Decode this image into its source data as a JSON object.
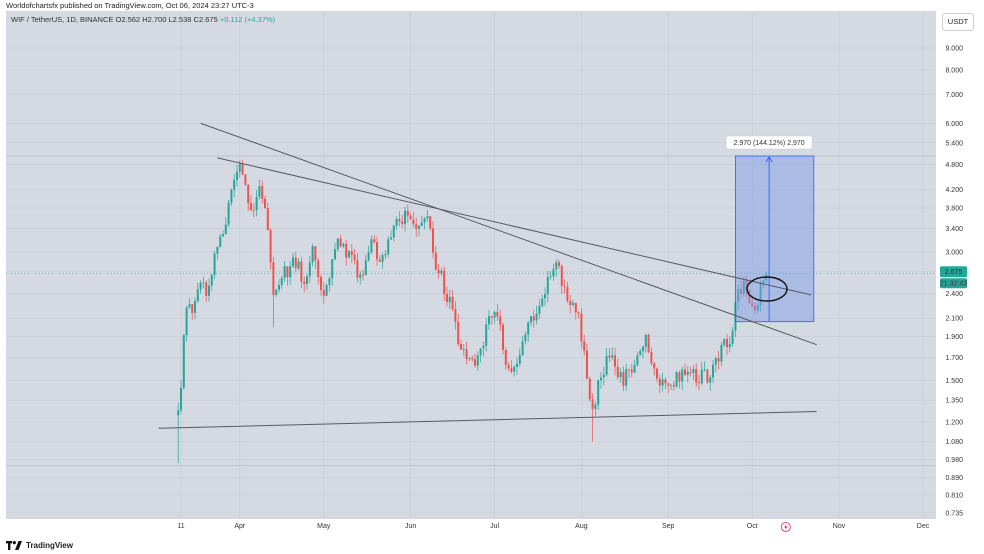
{
  "header": {
    "attribution": "Worldofchartsfx published on TradingView.com, Oct 06, 2024 23:27 UTC-3"
  },
  "symbol": {
    "name": "WIF / TetherUS, 1D, BINANCE",
    "open_label": "O",
    "open": "2.562",
    "high_label": "H",
    "high": "2.700",
    "low_label": "L",
    "low": "2.538",
    "close_label": "C",
    "close": "2.675",
    "change": "+0.112 (+4.37%)"
  },
  "currency_button": "USDT",
  "footer": {
    "brand": "TradingView"
  },
  "colors": {
    "up": "#26a69a",
    "down": "#ef5350",
    "background": "#d5d9e2",
    "trendline": "#555a63",
    "measure_fill": "#7f9fe6",
    "measure_line": "#2962ff",
    "price_badge": "#26a69a"
  },
  "chart_data": {
    "type": "candlestick",
    "scale": "log",
    "price_axis": {
      "ticks": [
        "9.000",
        "8.000",
        "7.000",
        "6.000",
        "5.400",
        "4.800",
        "4.200",
        "3.800",
        "3.400",
        "3.000",
        "2.700",
        "2.400",
        "2.100",
        "1.900",
        "1.700",
        "1.500",
        "1.350",
        "1.200",
        "1.080",
        "0.980",
        "0.890",
        "0.810",
        "0.735"
      ],
      "ylim": [
        0.7,
        10
      ]
    },
    "time_axis": {
      "labels": [
        "11",
        "Apr",
        "May",
        "Jun",
        "Jul",
        "Aug",
        "Sep",
        "Oct",
        "Nov",
        "Dec"
      ],
      "dates": [
        "2024-03-11",
        "2024-04-01",
        "2024-05-01",
        "2024-06-01",
        "2024-07-01",
        "2024-08-01",
        "2024-09-01",
        "2024-10-01",
        "2024-11-01",
        "2024-12-01"
      ]
    },
    "current_price_label": "2.675",
    "countdown_label": "21:32:43",
    "last_close": 2.675,
    "measurement": {
      "label": "2.970 (144.12%) 2,970",
      "from_price": 2.06,
      "to_price": 5.03,
      "from_date": "2024-09-25",
      "to_date": "2024-10-23"
    },
    "trendlines": [
      {
        "name": "upper descending",
        "from": {
          "date": "2024-03-18",
          "price": 6.0
        },
        "to": {
          "date": "2024-10-24",
          "price": 1.82
        }
      },
      {
        "name": "lower descending",
        "from": {
          "date": "2024-03-24",
          "price": 4.98
        },
        "to": {
          "date": "2024-10-22",
          "price": 2.38
        }
      },
      {
        "name": "support",
        "from": {
          "date": "2024-03-03",
          "price": 1.16
        },
        "to": {
          "date": "2024-10-24",
          "price": 1.27
        }
      }
    ],
    "anchors": [
      {
        "date": "2024-03-10",
        "close": 1.22
      },
      {
        "date": "2024-03-13",
        "close": 2.3
      },
      {
        "date": "2024-03-15",
        "close": 2.2
      },
      {
        "date": "2024-03-18",
        "close": 2.6
      },
      {
        "date": "2024-03-21",
        "close": 2.4
      },
      {
        "date": "2024-03-24",
        "close": 3.1
      },
      {
        "date": "2024-03-27",
        "close": 3.6
      },
      {
        "date": "2024-03-30",
        "close": 4.3
      },
      {
        "date": "2024-04-01",
        "close": 4.6
      },
      {
        "date": "2024-04-05",
        "close": 3.7
      },
      {
        "date": "2024-04-08",
        "close": 4.1
      },
      {
        "date": "2024-04-11",
        "close": 3.4
      },
      {
        "date": "2024-04-13",
        "close": 2.3
      },
      {
        "date": "2024-04-16",
        "close": 2.6
      },
      {
        "date": "2024-04-20",
        "close": 2.9
      },
      {
        "date": "2024-04-24",
        "close": 2.6
      },
      {
        "date": "2024-04-27",
        "close": 3.1
      },
      {
        "date": "2024-05-01",
        "close": 2.4
      },
      {
        "date": "2024-05-06",
        "close": 3.3
      },
      {
        "date": "2024-05-10",
        "close": 2.9
      },
      {
        "date": "2024-05-14",
        "close": 2.6
      },
      {
        "date": "2024-05-18",
        "close": 3.1
      },
      {
        "date": "2024-05-22",
        "close": 2.9
      },
      {
        "date": "2024-05-26",
        "close": 3.4
      },
      {
        "date": "2024-05-31",
        "close": 3.8
      },
      {
        "date": "2024-06-03",
        "close": 3.3
      },
      {
        "date": "2024-06-07",
        "close": 3.5
      },
      {
        "date": "2024-06-10",
        "close": 2.8
      },
      {
        "date": "2024-06-14",
        "close": 2.4
      },
      {
        "date": "2024-06-18",
        "close": 1.9
      },
      {
        "date": "2024-06-21",
        "close": 1.75
      },
      {
        "date": "2024-06-24",
        "close": 1.6
      },
      {
        "date": "2024-06-28",
        "close": 2.0
      },
      {
        "date": "2024-07-02",
        "close": 2.2
      },
      {
        "date": "2024-07-05",
        "close": 1.7
      },
      {
        "date": "2024-07-08",
        "close": 1.6
      },
      {
        "date": "2024-07-12",
        "close": 1.9
      },
      {
        "date": "2024-07-16",
        "close": 2.2
      },
      {
        "date": "2024-07-20",
        "close": 2.6
      },
      {
        "date": "2024-07-23",
        "close": 2.8
      },
      {
        "date": "2024-07-26",
        "close": 2.5
      },
      {
        "date": "2024-07-30",
        "close": 2.2
      },
      {
        "date": "2024-08-02",
        "close": 1.8
      },
      {
        "date": "2024-08-05",
        "close": 1.25
      },
      {
        "date": "2024-08-08",
        "close": 1.6
      },
      {
        "date": "2024-08-12",
        "close": 1.7
      },
      {
        "date": "2024-08-16",
        "close": 1.5
      },
      {
        "date": "2024-08-20",
        "close": 1.6
      },
      {
        "date": "2024-08-24",
        "close": 1.95
      },
      {
        "date": "2024-08-28",
        "close": 1.5
      },
      {
        "date": "2024-09-02",
        "close": 1.45
      },
      {
        "date": "2024-09-06",
        "close": 1.6
      },
      {
        "date": "2024-09-10",
        "close": 1.55
      },
      {
        "date": "2024-09-15",
        "close": 1.55
      },
      {
        "date": "2024-09-19",
        "close": 1.7
      },
      {
        "date": "2024-09-23",
        "close": 1.9
      },
      {
        "date": "2024-09-26",
        "close": 2.4
      },
      {
        "date": "2024-09-29",
        "close": 2.5
      },
      {
        "date": "2024-10-02",
        "close": 2.2
      },
      {
        "date": "2024-10-05",
        "close": 2.56
      },
      {
        "date": "2024-10-06",
        "close": 2.675
      }
    ]
  }
}
